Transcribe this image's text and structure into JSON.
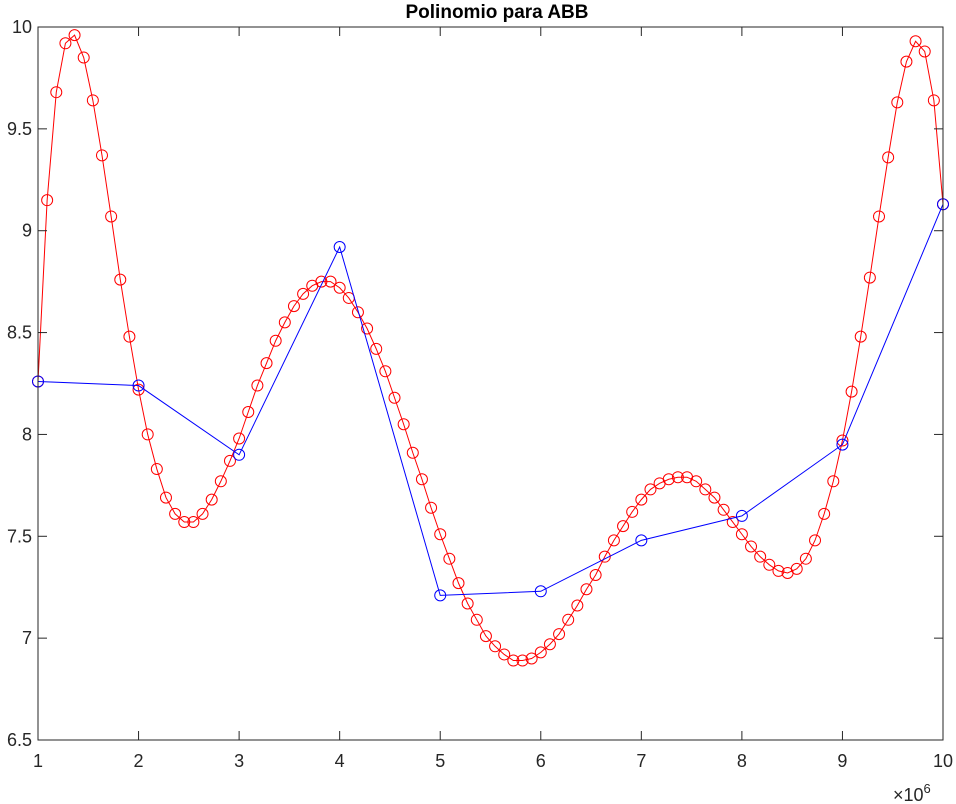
{
  "chart_data": {
    "type": "line",
    "title": "Polinomio para ABB",
    "xlabel": "",
    "ylabel": "",
    "x_exponent_label": "×10",
    "x_exponent_power": "6",
    "xlim": [
      1000000,
      10000000
    ],
    "ylim": [
      6.5,
      10
    ],
    "x_ticks": [
      1000000,
      2000000,
      3000000,
      4000000,
      5000000,
      6000000,
      7000000,
      8000000,
      9000000,
      10000000
    ],
    "x_tick_labels": [
      "1",
      "2",
      "3",
      "4",
      "5",
      "6",
      "7",
      "8",
      "9",
      "10"
    ],
    "y_ticks": [
      6.5,
      7,
      7.5,
      8,
      8.5,
      9,
      9.5,
      10
    ],
    "y_tick_labels": [
      "6.5",
      "7",
      "7.5",
      "8",
      "8.5",
      "9",
      "9.5",
      "10"
    ],
    "grid": false,
    "box": true,
    "series": [
      {
        "color": "#ff0000",
        "marker": "circle",
        "x": [
          1000000,
          1090909,
          1181818,
          1272727,
          1363636,
          1454545,
          1545455,
          1636364,
          1727273,
          1818182,
          1909091,
          2000000,
          2090909,
          2181818,
          2272727,
          2363636,
          2454545,
          2545455,
          2636364,
          2727273,
          2818182,
          2909091,
          3000000,
          3090909,
          3181818,
          3272727,
          3363636,
          3454545,
          3545455,
          3636364,
          3727273,
          3818182,
          3909091,
          4000000,
          4090909,
          4181818,
          4272727,
          4363636,
          4454545,
          4545455,
          4636364,
          4727273,
          4818182,
          4909091,
          5000000,
          5090909,
          5181818,
          5272727,
          5363636,
          5454545,
          5545455,
          5636364,
          5727273,
          5818182,
          5909091,
          6000000,
          6090909,
          6181818,
          6272727,
          6363636,
          6454545,
          6545455,
          6636364,
          6727273,
          6818182,
          6909091,
          7000000,
          7090909,
          7181818,
          7272727,
          7363636,
          7454545,
          7545455,
          7636364,
          7727273,
          7818182,
          7909091,
          8000000,
          8090909,
          8181818,
          8272727,
          8363636,
          8454545,
          8545455,
          8636364,
          8727273,
          8818182,
          8909091,
          9000000,
          9090909,
          9181818,
          9272727,
          9363636,
          9454545,
          9545455,
          9636364,
          9727273,
          9818182,
          9909091,
          10000000
        ],
        "y": [
          8.26,
          9.15,
          9.68,
          9.92,
          9.96,
          9.85,
          9.64,
          9.37,
          9.07,
          8.76,
          8.48,
          8.22,
          8.0,
          7.83,
          7.69,
          7.61,
          7.57,
          7.57,
          7.61,
          7.68,
          7.77,
          7.87,
          7.98,
          8.11,
          8.24,
          8.35,
          8.46,
          8.55,
          8.63,
          8.69,
          8.73,
          8.75,
          8.75,
          8.72,
          8.67,
          8.6,
          8.52,
          8.42,
          8.31,
          8.18,
          8.05,
          7.91,
          7.78,
          7.64,
          7.51,
          7.39,
          7.27,
          7.17,
          7.09,
          7.01,
          6.96,
          6.92,
          6.89,
          6.89,
          6.9,
          6.93,
          6.97,
          7.02,
          7.09,
          7.16,
          7.24,
          7.31,
          7.4,
          7.48,
          7.55,
          7.62,
          7.68,
          7.73,
          7.76,
          7.78,
          7.79,
          7.79,
          7.77,
          7.73,
          7.69,
          7.63,
          7.57,
          7.51,
          7.45,
          7.4,
          7.36,
          7.33,
          7.32,
          7.34,
          7.39,
          7.48,
          7.61,
          7.77,
          7.97,
          8.21,
          8.48,
          8.77,
          9.07,
          9.36,
          9.63,
          9.83,
          9.93,
          9.88,
          9.64,
          9.13
        ]
      },
      {
        "color": "#0000ff",
        "marker": "circle",
        "x": [
          1000000,
          2000000,
          3000000,
          4000000,
          5000000,
          6000000,
          7000000,
          8000000,
          9000000,
          10000000
        ],
        "y": [
          8.26,
          8.24,
          7.9,
          8.92,
          7.21,
          7.23,
          7.48,
          7.6,
          7.95,
          9.13
        ]
      }
    ]
  }
}
